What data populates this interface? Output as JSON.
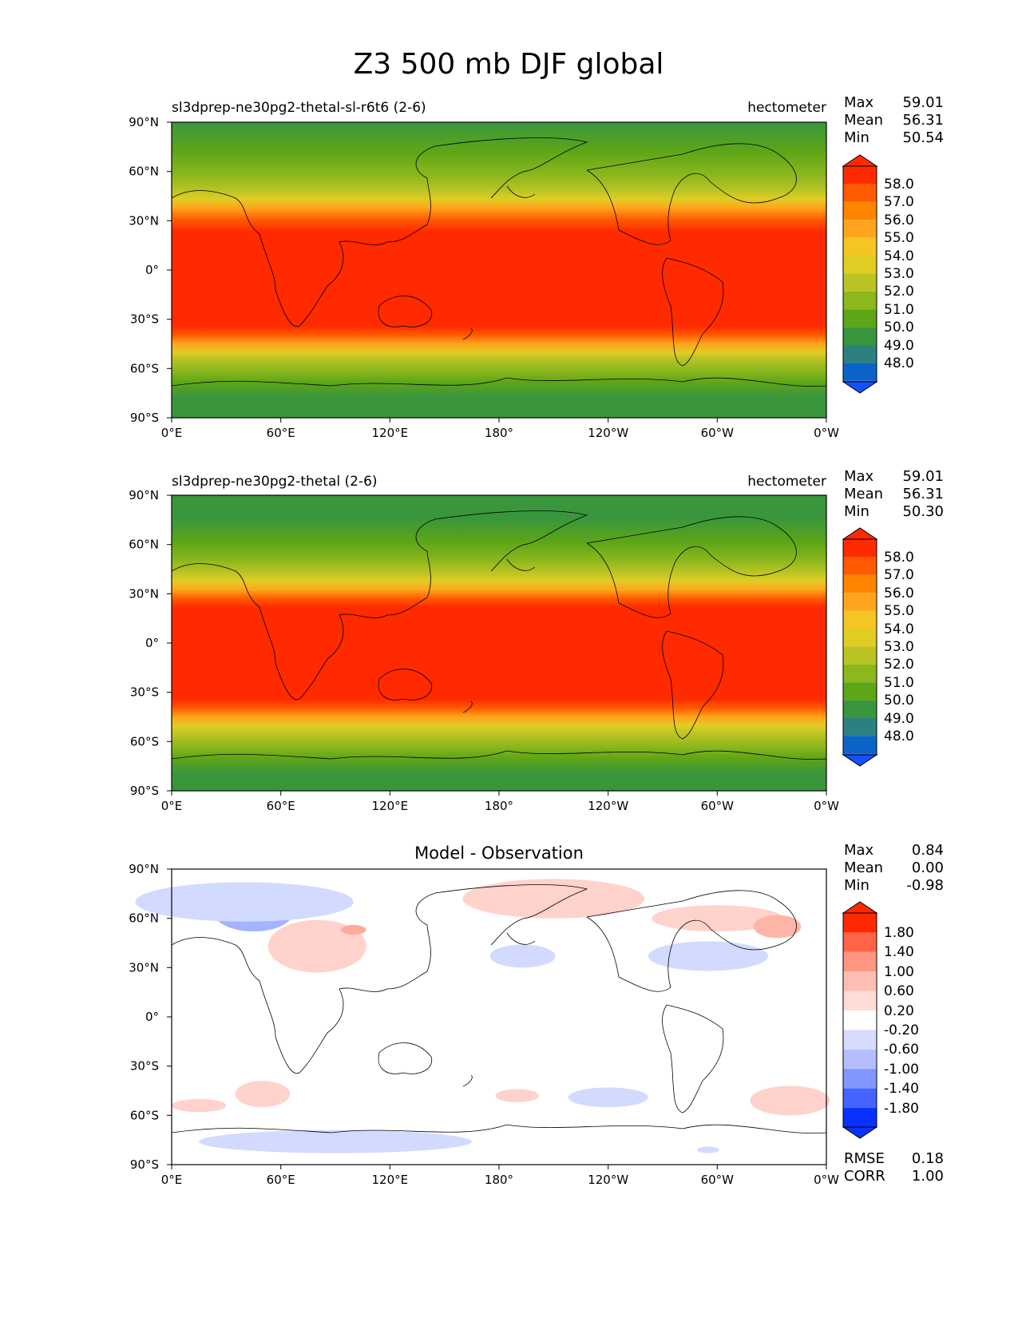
{
  "figure": {
    "title": "Z3 500 mb DJF global"
  },
  "chart_data": [
    {
      "type": "heatmap",
      "title": "sl3dprep-ne30pg2-thetal-sl-r6t6 (2-6)",
      "units": "hectometer",
      "stats": [
        {
          "label": "Max",
          "value": "59.01"
        },
        {
          "label": "Mean",
          "value": "56.31"
        },
        {
          "label": "Min",
          "value": "50.54"
        }
      ],
      "xticks": [
        "0°E",
        "60°E",
        "120°E",
        "180°",
        "120°W",
        "60°W",
        "0°W"
      ],
      "yticks": [
        "90°N",
        "60°N",
        "30°N",
        "0°",
        "30°S",
        "60°S",
        "90°S"
      ],
      "xlim": [
        0,
        360
      ],
      "ylim": [
        -90,
        90
      ],
      "colorbar": {
        "labels": [
          "58.0",
          "57.0",
          "56.0",
          "55.0",
          "54.0",
          "53.0",
          "52.0",
          "51.0",
          "50.0",
          "49.0",
          "48.0"
        ],
        "colors": [
          "#ff2a00",
          "#ff5a00",
          "#ff8500",
          "#ffa41c",
          "#f5c523",
          "#e1cc24",
          "#b9c424",
          "#8cb71d",
          "#5ea617",
          "#3a963c",
          "#2d8080",
          "#0a64c8",
          "#1450ff"
        ]
      },
      "bands": [
        {
          "lat": [
            23,
            90
          ],
          "level": "50.0",
          "color": "#3a963c"
        },
        {
          "lat": [
            -36,
            23
          ],
          "level": "58.0",
          "color": "#ff2a00"
        },
        {
          "lat": [
            -90,
            -36
          ],
          "level": "50.0",
          "color": "#3a963c"
        }
      ]
    },
    {
      "type": "heatmap",
      "title": "sl3dprep-ne30pg2-thetal (2-6)",
      "units": "hectometer",
      "stats": [
        {
          "label": "Max",
          "value": "59.01"
        },
        {
          "label": "Mean",
          "value": "56.31"
        },
        {
          "label": "Min",
          "value": "50.30"
        }
      ],
      "xticks": [
        "0°E",
        "60°E",
        "120°E",
        "180°",
        "120°W",
        "60°W",
        "0°W"
      ],
      "yticks": [
        "90°N",
        "60°N",
        "30°N",
        "0°",
        "30°S",
        "60°S",
        "90°S"
      ],
      "xlim": [
        0,
        360
      ],
      "ylim": [
        -90,
        90
      ],
      "colorbar": {
        "labels": [
          "58.0",
          "57.0",
          "56.0",
          "55.0",
          "54.0",
          "53.0",
          "52.0",
          "51.0",
          "50.0",
          "49.0",
          "48.0"
        ],
        "colors": [
          "#ff2a00",
          "#ff5a00",
          "#ff8500",
          "#ffa41c",
          "#f5c523",
          "#e1cc24",
          "#b9c424",
          "#8cb71d",
          "#5ea617",
          "#3a963c",
          "#2d8080",
          "#0a64c8",
          "#1450ff"
        ]
      },
      "bands": [
        {
          "lat": [
            23,
            90
          ],
          "level": "50.0",
          "color": "#3a963c"
        },
        {
          "lat": [
            -36,
            23
          ],
          "level": "58.0",
          "color": "#ff2a00"
        },
        {
          "lat": [
            -90,
            -36
          ],
          "level": "50.0",
          "color": "#3a963c"
        }
      ]
    },
    {
      "type": "heatmap",
      "title": "Model - Observation",
      "units": "",
      "stats": [
        {
          "label": "Max",
          "value": "0.84"
        },
        {
          "label": "Mean",
          "value": "0.00"
        },
        {
          "label": "Min",
          "value": "-0.98"
        }
      ],
      "footer_stats": [
        {
          "label": "RMSE",
          "value": "0.18"
        },
        {
          "label": "CORR",
          "value": "1.00"
        }
      ],
      "xticks": [
        "0°E",
        "60°E",
        "120°E",
        "180°",
        "120°W",
        "60°W",
        "0°W"
      ],
      "yticks": [
        "90°N",
        "60°N",
        "30°N",
        "0°",
        "30°S",
        "60°S",
        "90°S"
      ],
      "xlim": [
        0,
        360
      ],
      "ylim": [
        -90,
        90
      ],
      "colorbar": {
        "labels": [
          "1.80",
          "1.40",
          "1.00",
          "0.60",
          "0.20",
          "-0.20",
          "-0.60",
          "-1.00",
          "-1.40",
          "-1.80"
        ],
        "colors": [
          "#ff2a00",
          "#ff6446",
          "#ff9682",
          "#ffbeb4",
          "#ffdcd7",
          "#ffffff",
          "#d7dcff",
          "#b4beff",
          "#8296ff",
          "#4664ff",
          "#0a32ff"
        ]
      },
      "anomalies": [
        {
          "lon": 45,
          "lat": 64,
          "rlon": 22,
          "rlat": 12,
          "value": -0.9,
          "color": "#a5b4ff"
        },
        {
          "lon": 40,
          "lat": 70,
          "rlon": 60,
          "rlat": 12,
          "value": -0.3,
          "color": "#d2daff"
        },
        {
          "lon": 80,
          "lat": 43,
          "rlon": 27,
          "rlat": 16,
          "value": 0.4,
          "color": "#ffd2cc"
        },
        {
          "lon": 100,
          "lat": 53,
          "rlon": 7,
          "rlat": 3,
          "value": 0.7,
          "color": "#ffaa9e"
        },
        {
          "lon": 193,
          "lat": 37,
          "rlon": 18,
          "rlat": 7,
          "value": -0.3,
          "color": "#d2daff"
        },
        {
          "lon": 210,
          "lat": 72,
          "rlon": 50,
          "rlat": 12,
          "value": 0.3,
          "color": "#ffd2cc"
        },
        {
          "lon": 300,
          "lat": 60,
          "rlon": 36,
          "rlat": 8,
          "value": 0.3,
          "color": "#ffd2cc"
        },
        {
          "lon": 333,
          "lat": 55,
          "rlon": 13,
          "rlat": 7,
          "value": 0.6,
          "color": "#ffb4a8"
        },
        {
          "lon": 295,
          "lat": 37,
          "rlon": 33,
          "rlat": 9,
          "value": -0.3,
          "color": "#d2daff"
        },
        {
          "lon": 50,
          "lat": -47,
          "rlon": 15,
          "rlat": 8,
          "value": 0.3,
          "color": "#ffd2cc"
        },
        {
          "lon": 15,
          "lat": -54,
          "rlon": 15,
          "rlat": 4,
          "value": 0.3,
          "color": "#ffd2cc"
        },
        {
          "lon": 190,
          "lat": -48,
          "rlon": 12,
          "rlat": 4,
          "value": 0.3,
          "color": "#ffd2cc"
        },
        {
          "lon": 240,
          "lat": -49,
          "rlon": 22,
          "rlat": 6,
          "value": -0.3,
          "color": "#d2daff"
        },
        {
          "lon": 340,
          "lat": -51,
          "rlon": 22,
          "rlat": 9,
          "value": 0.3,
          "color": "#ffd2cc"
        },
        {
          "lon": 90,
          "lat": -76,
          "rlon": 75,
          "rlat": 7,
          "value": -0.3,
          "color": "#d2daff"
        },
        {
          "lon": 295,
          "lat": -81,
          "rlon": 6,
          "rlat": 2,
          "value": -0.3,
          "color": "#d2daff"
        }
      ]
    }
  ]
}
